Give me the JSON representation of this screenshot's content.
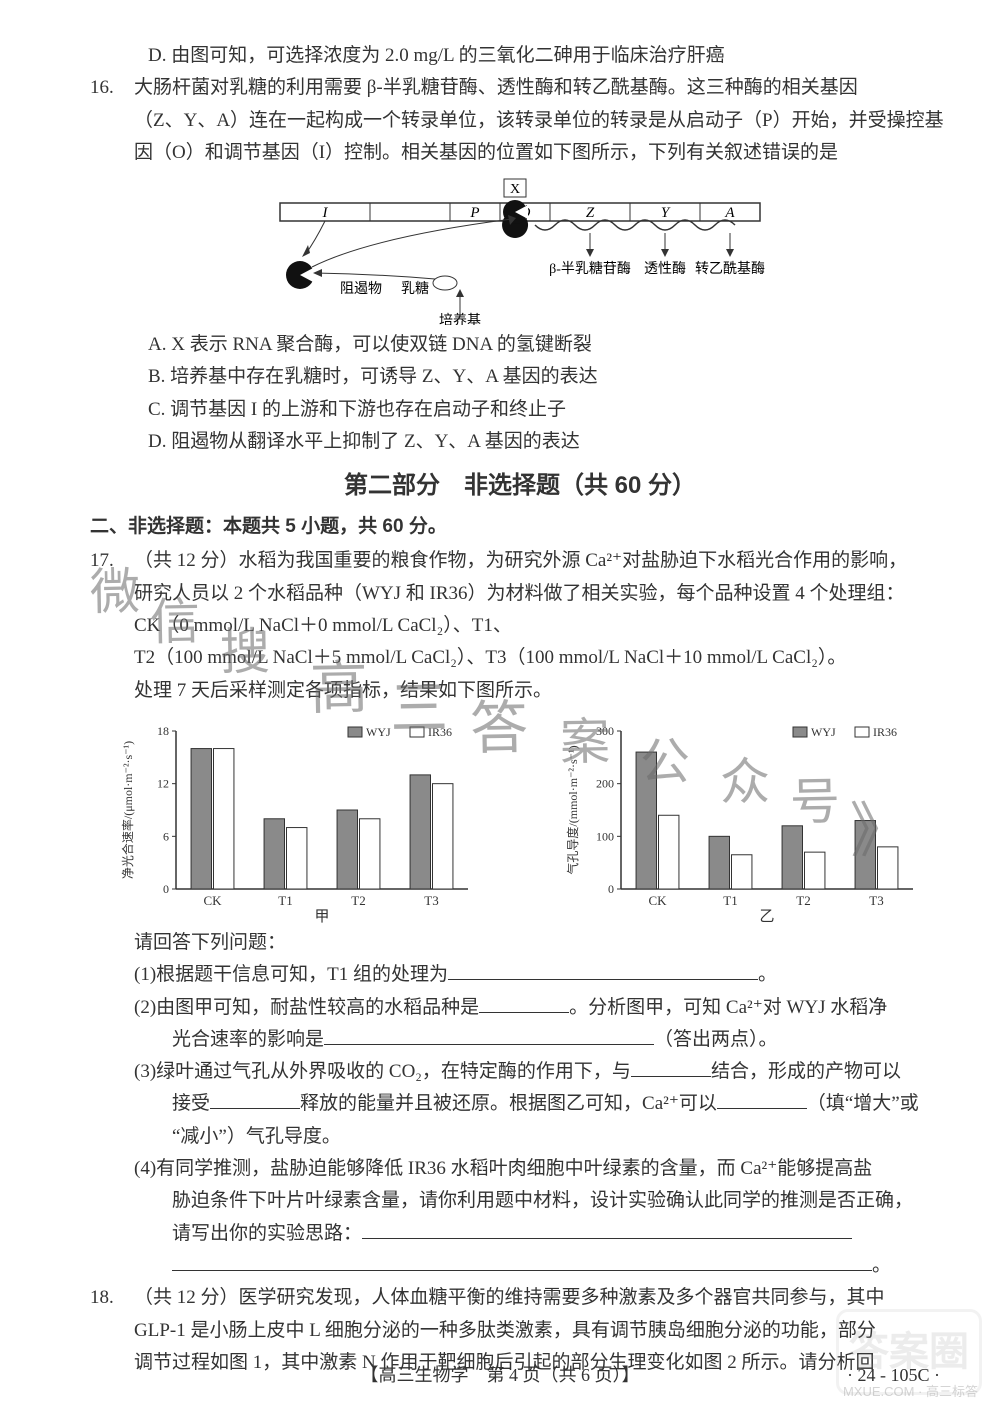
{
  "q15_opt_d": "D. 由图可知，可选择浓度为 2.0 mg/L 的三氧化二砷用于临床治疗肝癌",
  "q16": {
    "stem1": "大肠杆菌对乳糖的利用需要 β-半乳糖苷酶、透性酶和转乙酰基酶。这三种酶的相关基因",
    "stem2": "（Z、Y、A）连在一起构成一个转录单位，该转录单位的转录是从启动子（P）开始，并受操控基",
    "stem3": "因（O）和调节基因（I）控制。相关基因的位置如下图所示，下列有关叙述错误的是",
    "diagram": {
      "genes": [
        "I",
        "P",
        "O",
        "Z",
        "Y",
        "A"
      ],
      "labels": {
        "x": "X",
        "repressor": "阻遏物",
        "lactose": "乳糖",
        "medium": "培养基",
        "beta": "β-半乳糖苷酶",
        "perm": "透性酶",
        "trans": "转乙酰基酶"
      },
      "colors": {
        "stroke": "#333333",
        "fill_pac": "#111111"
      }
    },
    "opts": {
      "A": "A. X 表示 RNA 聚合酶，可以使双链 DNA 的氢键断裂",
      "B": "B. 培养基中存在乳糖时，可诱导 Z、Y、A 基因的表达",
      "C": "C. 调节基因 I 的上游和下游也存在启动子和终止子",
      "D": "D. 阻遏物从翻译水平上抑制了 Z、Y、A 基因的表达"
    }
  },
  "section2": {
    "title": "第二部分　非选择题（共 60 分）",
    "sub": "二、非选择题：本题共 5 小题，共 60 分。"
  },
  "q17": {
    "num": "17.",
    "stem_lines": [
      "（共 12 分）水稻为我国重要的粮食作物，为研究外源 Ca²⁺对盐胁迫下水稻光合作用的影响，",
      "研究人员以 2 个水稻品种（WYJ 和 IR36）为材料做了相关实验，每个品种设置 4 个处理组：",
      "CK（0 mmol/L NaCl＋0 mmol/L CaCl₂）、T1、",
      "T2（100 mmol/L NaCl＋5 mmol/L CaCl₂）、T3（100 mmol/L NaCl＋10 mmol/L CaCl₂）。",
      "处理 7 天后采样测定各项指标，结果如下图所示。"
    ],
    "chart1": {
      "type": "bar",
      "title_y": "净光合速率/(μmol·m⁻²·s⁻¹)",
      "categories": [
        "CK",
        "T1",
        "T2",
        "T3"
      ],
      "series": [
        {
          "name": "WYJ",
          "color": "#8a8a8a",
          "values": [
            16,
            8,
            9,
            13
          ]
        },
        {
          "name": "IR36",
          "color": "#ffffff",
          "values": [
            16,
            7,
            8,
            12
          ]
        }
      ],
      "ylim": [
        0,
        18
      ],
      "ytick_step": 6,
      "xlabel": "甲",
      "bg": "#ffffff",
      "axis_color": "#333333",
      "bar_border": "#333333",
      "legend_pos": "top-right"
    },
    "chart2": {
      "type": "bar",
      "title_y": "气孔导度/(mmol·m⁻²·s⁻¹)",
      "categories": [
        "CK",
        "T1",
        "T2",
        "T3"
      ],
      "series": [
        {
          "name": "WYJ",
          "color": "#8a8a8a",
          "values": [
            260,
            100,
            120,
            130
          ]
        },
        {
          "name": "IR36",
          "color": "#ffffff",
          "values": [
            140,
            65,
            70,
            80
          ]
        }
      ],
      "ylim": [
        0,
        300
      ],
      "ytick_step": 100,
      "xlabel": "乙",
      "bg": "#ffffff",
      "axis_color": "#333333",
      "bar_border": "#333333",
      "legend_pos": "top-right"
    },
    "prompt": "请回答下列问题：",
    "subq": {
      "1": "(1)根据题干信息可知，T1 组的处理为",
      "2a": "(2)由图甲可知，耐盐性较高的水稻品种是",
      "2b": "。分析图甲，可知 Ca²⁺对 WYJ 水稻净",
      "2c": "光合速率的影响是",
      "2d": "（答出两点）。",
      "3a": "(3)绿叶通过气孔从外界吸收的 CO₂，在特定酶的作用下，与",
      "3b": "结合，形成的产物可以",
      "3c": "接受",
      "3d": "释放的能量并且被还原。根据图乙可知，Ca²⁺可以",
      "3e": "（填“增大”或",
      "3f": "“减小”）气孔导度。",
      "4a": "(4)有同学推测，盐胁迫能够降低 IR36 水稻叶肉细胞中叶绿素的含量，而 Ca²⁺能够提高盐",
      "4b": "胁迫条件下叶片叶绿素含量，请你利用题中材料，设计实验确认此同学的推测是否正确，",
      "4c": "请写出你的实验思路："
    }
  },
  "q18": {
    "num": "18.",
    "lines": [
      "（共 12 分）医学研究发现，人体血糖平衡的维持需要多种激素及多个器官共同参与，其中",
      "GLP-1 是小肠上皮中 L 细胞分泌的一种多肽类激素，具有调节胰岛细胞分泌的功能，部分",
      "调节过程如图 1，其中激素 N 作用于靶细胞后引起的部分生理变化如图 2 所示。请分析回"
    ]
  },
  "footer": {
    "center": "【高三生物学　第 4 页（共 6 页）】",
    "code": "· 24 - 105C ·"
  },
  "watermarks": [
    "微",
    "信",
    "搜",
    "高",
    "三",
    "答",
    "案",
    "公",
    "众",
    "号",
    "》"
  ]
}
